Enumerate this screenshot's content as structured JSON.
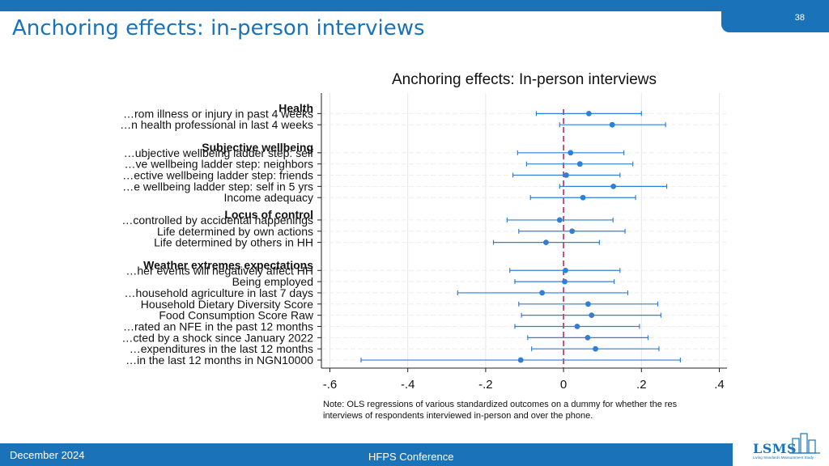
{
  "slide": {
    "title": "Anchoring effects: in-person interviews",
    "page_number": "38",
    "footer_date": "December 2024",
    "footer_conference": "HFPS Conference",
    "logo_text": "LSMS",
    "logo_subtext": "Living Standards Measurement Study"
  },
  "colors": {
    "brand": "#1a73b8",
    "marker": "#2f7fd8",
    "zero_line": "#b03060"
  },
  "chart_data": {
    "type": "scatter",
    "title": "Anchoring effects: In-person interviews",
    "xlim": [
      -0.6,
      0.4
    ],
    "ticks": [
      -0.6,
      -0.4,
      -0.2,
      0,
      0.2,
      0.4
    ],
    "tick_labels": [
      "-.6",
      "-.4",
      "-.2",
      "0",
      ".2",
      ".4"
    ],
    "zero_line": 0,
    "grid": true,
    "groups": [
      {
        "label": "Health",
        "y": 0.5
      },
      {
        "label": "Subjective wellbeing",
        "y": 4
      },
      {
        "label": "Locus of control",
        "y": 10
      },
      {
        "label": "Weather extremes expectations",
        "y": 14.5
      }
    ],
    "rows": [
      {
        "label": "…rom illness or injury in past 4 weeks",
        "y": 1,
        "estimate": 0.065,
        "ci": [
          -0.07,
          0.2
        ]
      },
      {
        "label": "…n health professional in last 4 weeks",
        "y": 2,
        "estimate": 0.125,
        "ci": [
          -0.01,
          0.262
        ]
      },
      {
        "label": "…ubjective wellbeing ladder step: self",
        "y": 4.5,
        "estimate": 0.018,
        "ci": [
          -0.118,
          0.155
        ]
      },
      {
        "label": "…ve wellbeing ladder step: neighbors",
        "y": 5.5,
        "estimate": 0.042,
        "ci": [
          -0.095,
          0.178
        ]
      },
      {
        "label": "…ective wellbeing ladder step: friends",
        "y": 6.5,
        "estimate": 0.007,
        "ci": [
          -0.13,
          0.145
        ]
      },
      {
        "label": "…e wellbeing ladder step: self in 5 yrs",
        "y": 7.5,
        "estimate": 0.128,
        "ci": [
          -0.01,
          0.265
        ]
      },
      {
        "label": "Income adequacy",
        "y": 8.5,
        "estimate": 0.05,
        "ci": [
          -0.085,
          0.185
        ]
      },
      {
        "label": "…controlled by accidental happenings",
        "y": 10.5,
        "estimate": -0.01,
        "ci": [
          -0.145,
          0.127
        ]
      },
      {
        "label": "Life determined by own actions",
        "y": 11.5,
        "estimate": 0.022,
        "ci": [
          -0.115,
          0.158
        ]
      },
      {
        "label": "Life determined by others in HH",
        "y": 12.5,
        "estimate": -0.045,
        "ci": [
          -0.18,
          0.092
        ]
      },
      {
        "label": "…her events will negatively affect HH",
        "y": 15,
        "estimate": 0.005,
        "ci": [
          -0.138,
          0.145
        ]
      },
      {
        "label": "Being employed",
        "y": 16,
        "estimate": 0.003,
        "ci": [
          -0.125,
          0.13
        ]
      },
      {
        "label": "…household agriculture in last 7 days",
        "y": 17,
        "estimate": -0.055,
        "ci": [
          -0.272,
          0.165
        ]
      },
      {
        "label": "Household Dietary Diversity Score",
        "y": 18,
        "estimate": 0.063,
        "ci": [
          -0.115,
          0.242
        ]
      },
      {
        "label": "Food Consumption Score Raw",
        "y": 19,
        "estimate": 0.072,
        "ci": [
          -0.108,
          0.25
        ]
      },
      {
        "label": "…rated an NFE in the past 12 months",
        "y": 20,
        "estimate": 0.035,
        "ci": [
          -0.125,
          0.195
        ]
      },
      {
        "label": "…cted by a shock since January 2022",
        "y": 21,
        "estimate": 0.062,
        "ci": [
          -0.092,
          0.217
        ]
      },
      {
        "label": "…expenditures in the last 12 months",
        "y": 22,
        "estimate": 0.082,
        "ci": [
          -0.082,
          0.245
        ]
      },
      {
        "label": "…in the last 12 months in NGN10000",
        "y": 23,
        "estimate": -0.11,
        "ci": [
          -0.52,
          0.3
        ]
      }
    ],
    "note": [
      "Note: OLS regressions of various standardized outcomes on a dummy for whether the res",
      "interviews of respondents interviewed in-person and over the phone."
    ]
  }
}
